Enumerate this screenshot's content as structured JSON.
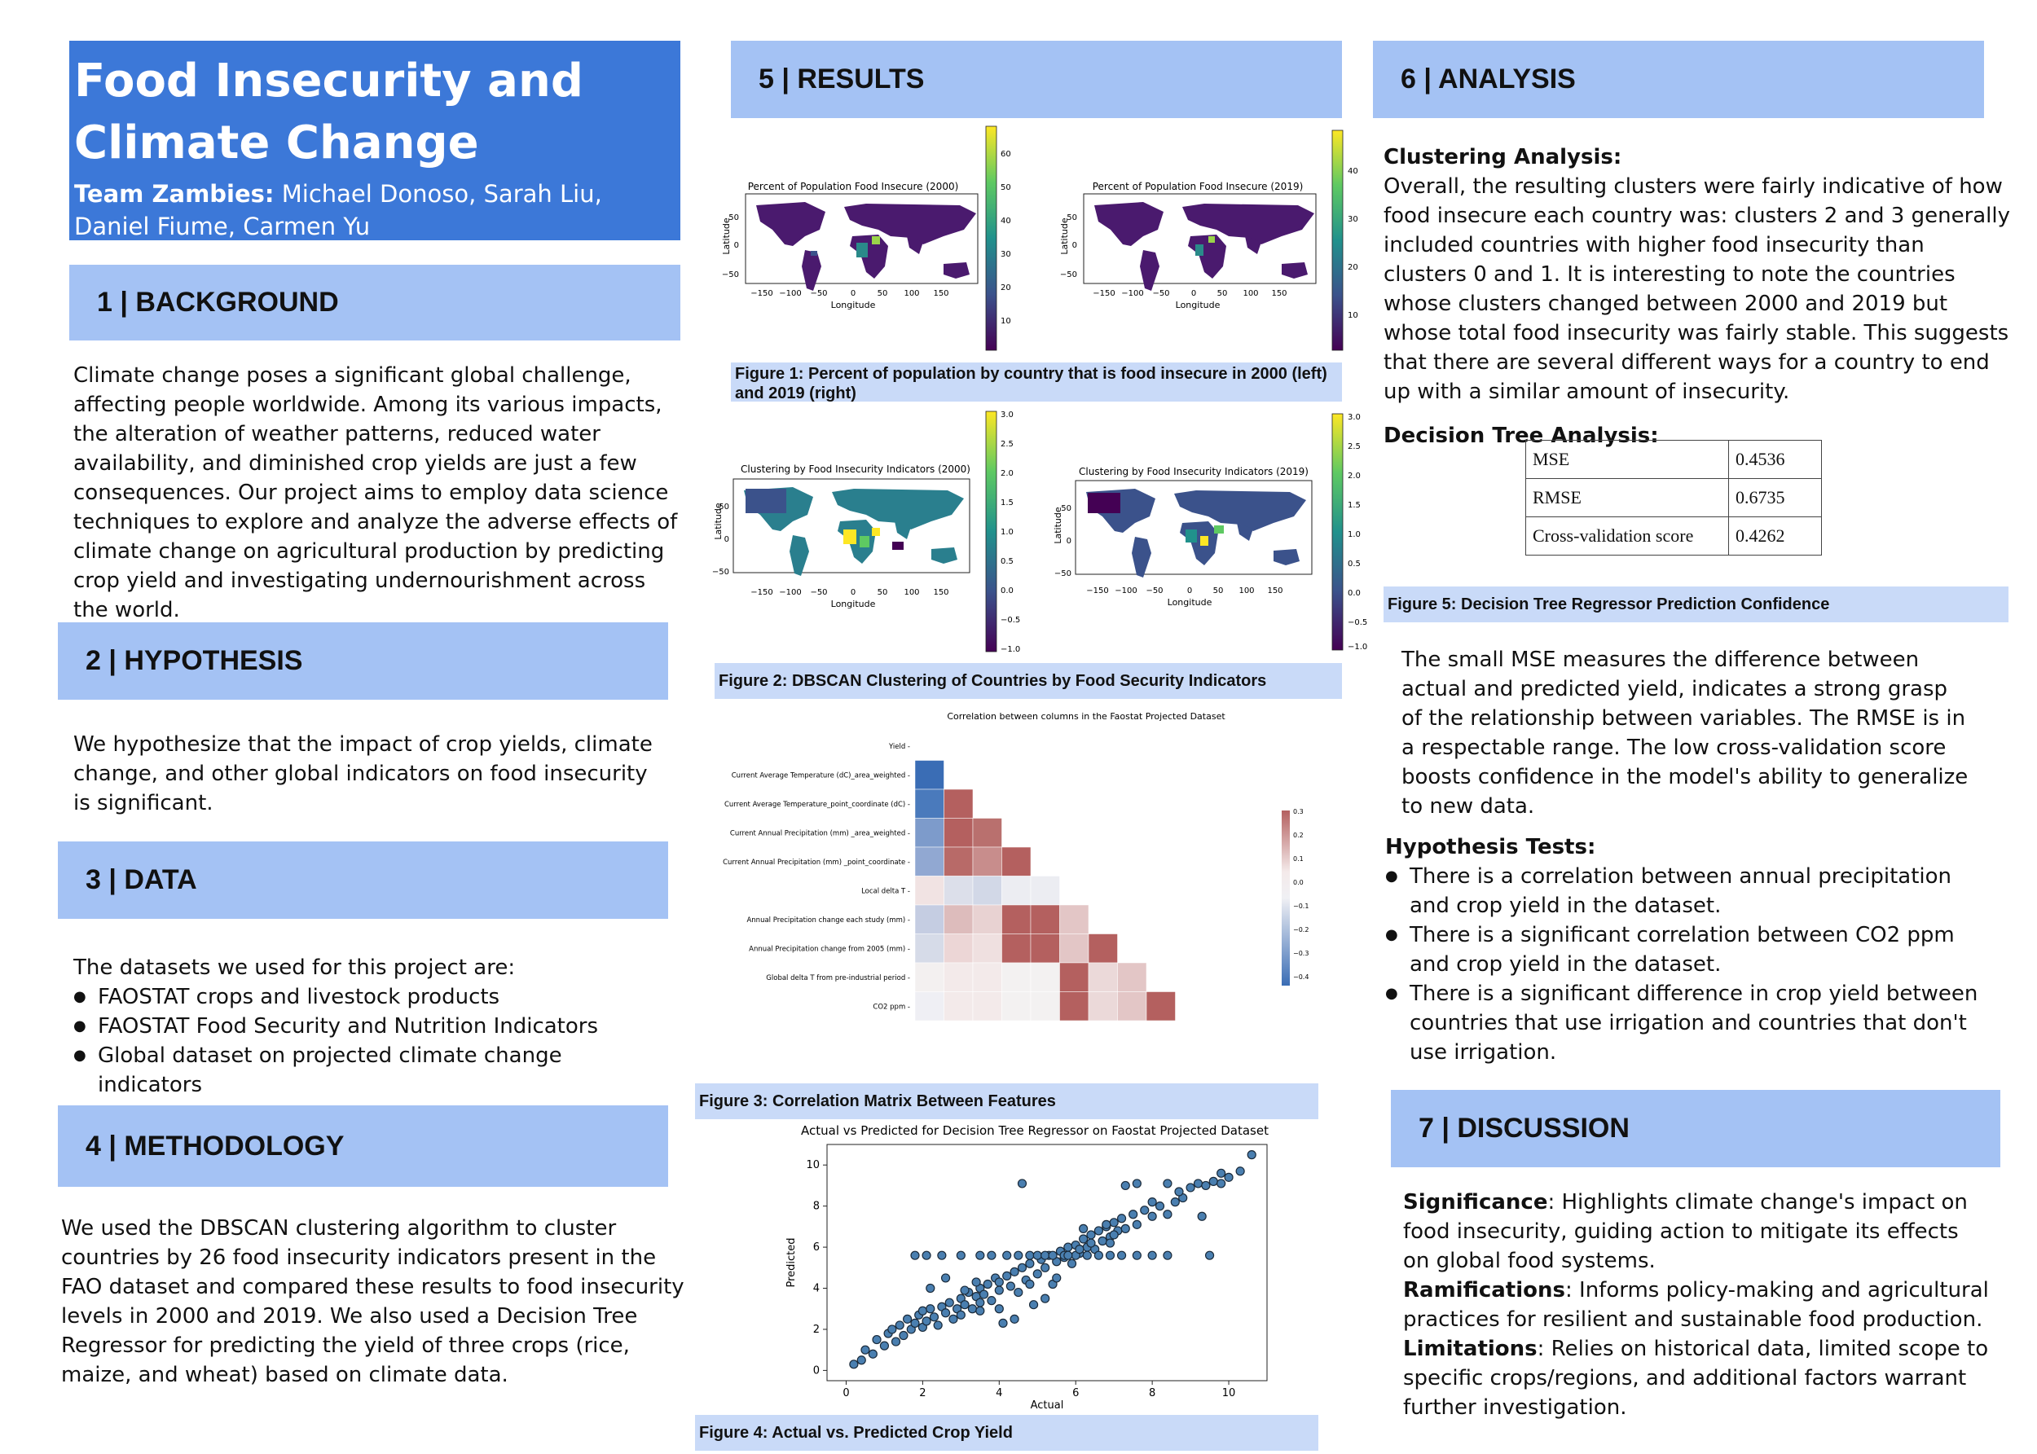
{
  "title": "Food Insecurity and Climate Change",
  "team_label": "Team Zambies:",
  "team_members": "Michael Donoso, Sarah Liu, Daniel Fiume, Carmen Yu",
  "sections": {
    "background": "1 | BACKGROUND",
    "hypothesis": "2 | HYPOTHESIS",
    "data": "3 | DATA",
    "methodology": "4 | METHODOLOGY",
    "results": "5 | RESULTS",
    "analysis": "6 | ANALYSIS",
    "discussion": "7 | DISCUSSION"
  },
  "background_text": "Climate change poses a significant global challenge, affecting people worldwide. Among its various impacts, the alteration of weather patterns, reduced water availability, and diminished crop yields are just a few consequences. Our project aims to employ data science techniques to explore and analyze the adverse effects of climate change on agricultural production by predicting crop yield and investigating undernourishment across the world.",
  "hypothesis_text": "We hypothesize that the impact of crop yields, climate change, and other global indicators on food insecurity is significant.",
  "data_intro": "The datasets we used for this project are:",
  "datasets": [
    "FAOSTAT crops and livestock products",
    "FAOSTAT Food Security and Nutrition Indicators",
    "Global dataset on projected climate change indicators"
  ],
  "methodology_text": "We used the DBSCAN clustering algorithm to cluster countries by 26 food insecurity indicators present in the FAO dataset and compared these results to food insecurity levels in 2000 and 2019. We also used a Decision Tree Regressor for predicting the yield of three crops (rice, maize, and wheat) based on climate data.",
  "figures": {
    "fig1": {
      "caption": "Figure 1: Percent of population by country that is food insecure in 2000 (left) and 2019 (right)",
      "left_title": "Percent of Population Food Insecure (2000)",
      "right_title": "Percent of Population Food Insecure (2019)",
      "xlabel": "Longitude",
      "ylabel": "Latitude",
      "xticks": [
        "−150",
        "−100",
        "−50",
        "0",
        "50",
        "100",
        "150"
      ],
      "yticks": [
        "50",
        "0",
        "−50"
      ],
      "left_cbar": [
        "60",
        "50",
        "40",
        "30",
        "20",
        "10"
      ],
      "right_cbar": [
        "40",
        "30",
        "20",
        "10"
      ]
    },
    "fig2": {
      "caption": "Figure 2: DBSCAN Clustering of Countries by Food Security Indicators",
      "left_title": "Clustering by Food Insecurity Indicators (2000)",
      "right_title": "Clustering by Food Insecurity Indicators (2019)",
      "cbar": [
        "3.0",
        "2.5",
        "2.0",
        "1.5",
        "1.0",
        "0.5",
        "0.0",
        "−0.5",
        "−1.0"
      ]
    },
    "fig3": {
      "caption": "Figure 3: Correlation Matrix Between Features",
      "title": "Correlation between columns in the Faostat Projected Dataset",
      "rows": [
        "Yield",
        "Current Average Temperature (dC)_area_weighted",
        "Current Average Temperature_point_coordinate (dC)",
        "Current Annual Precipitation (mm) _area_weighted",
        "Current Annual Precipitation  (mm) _point_coordinate",
        "Local delta T",
        "Annual Precipitation change each study  (mm)",
        "Annual Precipitation change  from 2005 (mm)",
        "Global delta T from pre-industrial period",
        "CO2 ppm"
      ],
      "cbar": [
        "0.3",
        "0.2",
        "0.1",
        "0.0",
        "−0.1",
        "−0.2",
        "−0.3",
        "−0.4"
      ]
    },
    "fig4": {
      "caption": "Figure 4: Actual vs. Predicted Crop Yield",
      "title": "Actual vs Predicted for Decision Tree Regressor on Faostat Projected Dataset",
      "xlabel": "Actual",
      "ylabel": "Predicted",
      "xticks": [
        "0",
        "2",
        "4",
        "6",
        "8",
        "10"
      ],
      "yticks": [
        "0",
        "2",
        "4",
        "6",
        "8",
        "10"
      ]
    },
    "fig5": {
      "caption": "Figure 5: Decision Tree Regressor Prediction Confidence"
    }
  },
  "chart_data": {
    "type": "scatter",
    "title": "Actual vs Predicted for Decision Tree Regressor on Faostat Projected Dataset",
    "xlabel": "Actual",
    "ylabel": "Predicted",
    "xlim": [
      -0.5,
      11
    ],
    "ylim": [
      -0.5,
      11
    ],
    "points": [
      [
        0.2,
        0.3
      ],
      [
        0.4,
        0.5
      ],
      [
        0.5,
        1.0
      ],
      [
        0.7,
        0.8
      ],
      [
        0.8,
        1.5
      ],
      [
        1.0,
        1.2
      ],
      [
        1.1,
        1.8
      ],
      [
        1.2,
        2.0
      ],
      [
        1.3,
        1.4
      ],
      [
        1.4,
        2.2
      ],
      [
        1.5,
        1.7
      ],
      [
        1.6,
        2.5
      ],
      [
        1.7,
        2.0
      ],
      [
        1.8,
        2.3
      ],
      [
        1.9,
        2.7
      ],
      [
        2.0,
        2.1
      ],
      [
        2.0,
        2.9
      ],
      [
        2.1,
        2.4
      ],
      [
        2.2,
        3.0
      ],
      [
        2.3,
        2.6
      ],
      [
        2.4,
        2.2
      ],
      [
        2.5,
        3.1
      ],
      [
        2.6,
        2.8
      ],
      [
        2.7,
        3.3
      ],
      [
        2.8,
        2.5
      ],
      [
        2.9,
        3.0
      ],
      [
        3.0,
        3.5
      ],
      [
        3.0,
        2.7
      ],
      [
        3.1,
        3.2
      ],
      [
        3.2,
        3.8
      ],
      [
        3.3,
        3.0
      ],
      [
        3.4,
        3.6
      ],
      [
        3.5,
        4.0
      ],
      [
        3.5,
        3.3
      ],
      [
        3.6,
        3.7
      ],
      [
        3.7,
        4.2
      ],
      [
        3.8,
        3.4
      ],
      [
        3.9,
        4.5
      ],
      [
        4.0,
        3.9
      ],
      [
        4.0,
        4.3
      ],
      [
        4.1,
        2.3
      ],
      [
        4.2,
        4.6
      ],
      [
        4.3,
        4.1
      ],
      [
        4.4,
        4.8
      ],
      [
        4.5,
        3.8
      ],
      [
        4.6,
        5.0
      ],
      [
        4.7,
        4.4
      ],
      [
        4.8,
        5.2
      ],
      [
        4.9,
        3.2
      ],
      [
        5.0,
        4.7
      ],
      [
        5.1,
        5.4
      ],
      [
        5.2,
        5.0
      ],
      [
        5.3,
        5.6
      ],
      [
        5.4,
        4.2
      ],
      [
        5.5,
        5.3
      ],
      [
        5.6,
        5.8
      ],
      [
        5.7,
        5.5
      ],
      [
        5.8,
        6.0
      ],
      [
        5.9,
        5.2
      ],
      [
        6.0,
        6.1
      ],
      [
        6.1,
        5.7
      ],
      [
        6.2,
        6.4
      ],
      [
        6.3,
        6.0
      ],
      [
        6.4,
        6.6
      ],
      [
        6.5,
        5.9
      ],
      [
        6.6,
        6.8
      ],
      [
        6.7,
        6.3
      ],
      [
        6.8,
        7.0
      ],
      [
        6.9,
        6.5
      ],
      [
        7.0,
        7.2
      ],
      [
        7.1,
        6.8
      ],
      [
        7.2,
        7.4
      ],
      [
        7.3,
        6.9
      ],
      [
        7.5,
        7.6
      ],
      [
        7.6,
        7.1
      ],
      [
        7.8,
        7.8
      ],
      [
        8.0,
        7.5
      ],
      [
        8.2,
        8.0
      ],
      [
        8.4,
        7.6
      ],
      [
        8.6,
        8.2
      ],
      [
        8.8,
        8.4
      ],
      [
        9.0,
        8.9
      ],
      [
        9.2,
        9.1
      ],
      [
        9.4,
        9.0
      ],
      [
        9.6,
        9.2
      ],
      [
        9.8,
        9.6
      ],
      [
        10.0,
        9.4
      ],
      [
        10.3,
        9.7
      ],
      [
        10.6,
        10.5
      ],
      [
        7.3,
        9.0
      ],
      [
        7.6,
        9.1
      ],
      [
        8.4,
        9.1
      ],
      [
        8.7,
        8.7
      ],
      [
        9.3,
        7.5
      ],
      [
        9.8,
        9.1
      ],
      [
        4.6,
        9.1
      ],
      [
        6.8,
        7.1
      ],
      [
        8.0,
        8.2
      ],
      [
        1.8,
        5.6
      ],
      [
        2.1,
        5.6
      ],
      [
        2.5,
        5.6
      ],
      [
        3.0,
        5.6
      ],
      [
        3.5,
        5.6
      ],
      [
        3.8,
        5.6
      ],
      [
        4.2,
        5.6
      ],
      [
        4.5,
        5.6
      ],
      [
        4.8,
        5.6
      ],
      [
        5.0,
        5.6
      ],
      [
        5.2,
        5.6
      ],
      [
        5.4,
        5.6
      ],
      [
        5.7,
        5.6
      ],
      [
        6.0,
        5.6
      ],
      [
        6.3,
        5.6
      ],
      [
        6.6,
        5.6
      ],
      [
        6.9,
        5.6
      ],
      [
        7.2,
        5.6
      ],
      [
        7.6,
        5.6
      ],
      [
        8.0,
        5.6
      ],
      [
        8.4,
        5.6
      ],
      [
        9.5,
        5.6
      ],
      [
        2.2,
        4.0
      ],
      [
        2.6,
        4.5
      ],
      [
        3.1,
        3.9
      ],
      [
        3.4,
        4.3
      ],
      [
        4.4,
        2.5
      ],
      [
        5.2,
        3.5
      ],
      [
        3.5,
        2.9
      ],
      [
        4.0,
        3.0
      ],
      [
        5.8,
        5.6
      ],
      [
        6.1,
        5.9
      ],
      [
        6.4,
        6.2
      ],
      [
        6.2,
        6.9
      ],
      [
        6.9,
        6.2
      ],
      [
        7.0,
        6.6
      ],
      [
        5.5,
        4.5
      ],
      [
        4.8,
        4.2
      ]
    ]
  },
  "analysis": {
    "clustering_head": "Clustering Analysis:",
    "clustering_text": "Overall, the resulting clusters were fairly indicative of how food insecure each country was: clusters 2 and 3 generally included countries with higher food insecurity than clusters 0 and 1. It is interesting to note the countries whose clusters changed between 2000 and 2019 but whose total food insecurity was fairly stable. This suggests that there are several different ways for a country to end up with a similar amount of insecurity.",
    "tree_head": "Decision Tree Analysis:",
    "metrics": [
      {
        "name": "MSE",
        "value": "0.4536"
      },
      {
        "name": "RMSE",
        "value": "0.6735"
      },
      {
        "name": "Cross-validation score",
        "value": "0.4262"
      }
    ],
    "mse_text": "The small MSE measures the difference between actual and predicted yield, indicates a strong grasp of the relationship between variables. The RMSE is in a respectable range. The low cross-validation score boosts confidence in the model's ability to generalize to new data.",
    "tests_head": "Hypothesis Tests:",
    "tests": [
      "There is a correlation between annual precipitation and crop yield in the dataset.",
      "There is a significant correlation between CO2 ppm and crop yield in the dataset.",
      "There is a significant difference in crop yield between countries that use irrigation and countries that don't use irrigation."
    ]
  },
  "discussion": {
    "sig_label": "Significance",
    "sig_text": ": Highlights climate change's impact on food insecurity, guiding action to mitigate its effects on global food systems.",
    "ram_label": "Ramifications",
    "ram_text": ": Informs policy-making and agricultural practices for resilient and sustainable food production.",
    "lim_label": "Limitations",
    "lim_text": ": Relies on historical data, limited scope to specific crops/regions, and additional factors warrant further investigation."
  },
  "colors": {
    "title_bg": "#3c78d8",
    "section_bg": "#a4c2f4",
    "caption_bg": "#c9daf8",
    "viridis_dark": "#440154",
    "viridis_yellow": "#fde725",
    "corr_red": "#b4605f",
    "corr_blue": "#3a6db5"
  }
}
